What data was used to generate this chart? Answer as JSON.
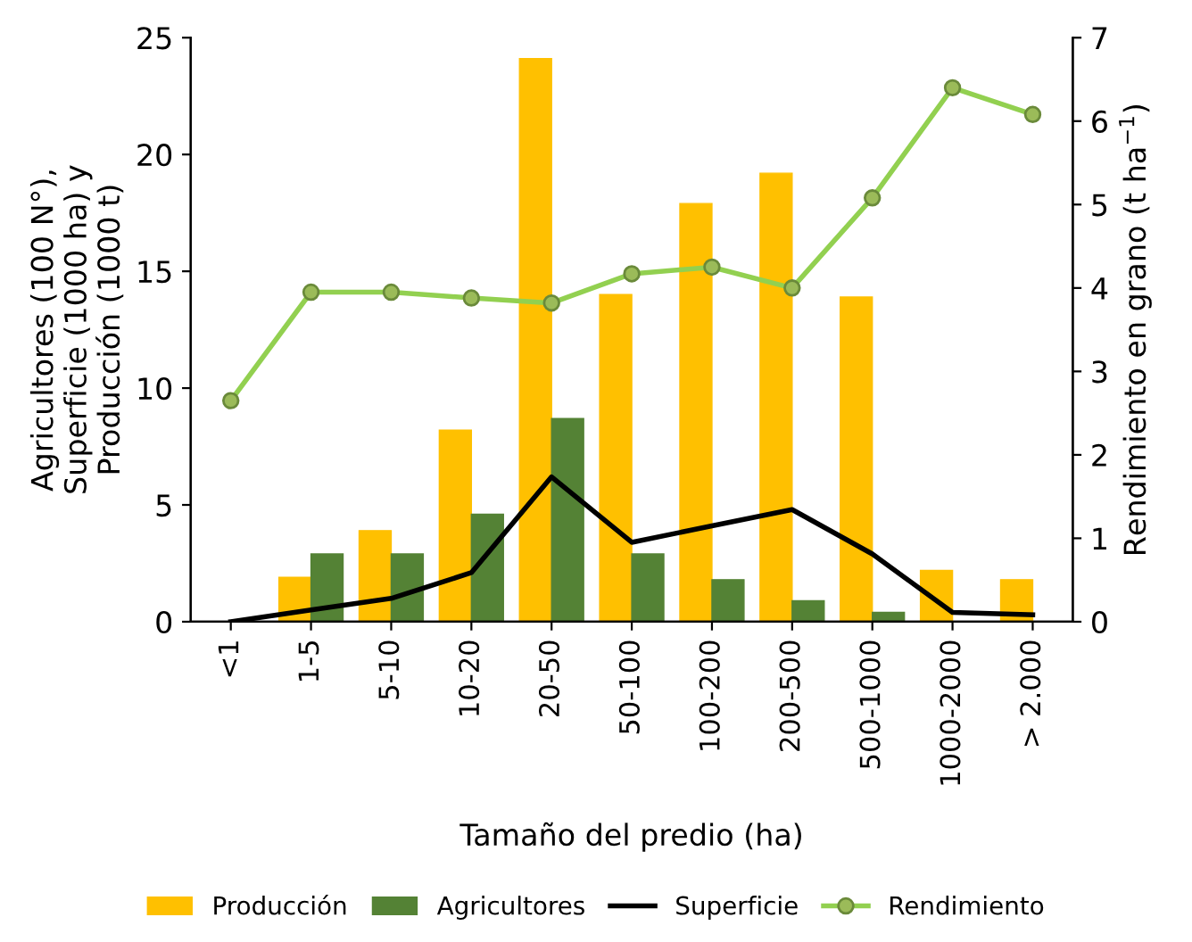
{
  "chart_data": {
    "type": "bar",
    "xlabel": "Tamaño del predio (ha)",
    "ylabel": "Agricultores (100 N°),\nSuperficie (1000 ha) y\nProducción (1000 t)",
    "y2label": "Rendimiento en grano (t ha$^{−1}$)",
    "categories": [
      "<1",
      "1-5",
      "5-10",
      "10-20",
      "20-50",
      "50-100",
      "100-200",
      "200-500",
      "500-1000",
      "1000-2000",
      "> 2.000"
    ],
    "series": [
      {
        "name": "Producción",
        "color": "#ffc000",
        "values": [
          0,
          1.9,
          3.9,
          8.2,
          24.1,
          14.0,
          17.9,
          19.2,
          13.9,
          2.2,
          1.8
        ]
      },
      {
        "name": "Agricultores",
        "color": "#548235",
        "values": [
          0,
          2.9,
          2.9,
          4.6,
          8.7,
          2.9,
          1.8,
          0.9,
          0.4,
          0,
          0
        ]
      },
      {
        "name": "Superficie",
        "type": "line",
        "color": "#000000",
        "values": [
          0.0,
          0.5,
          1.0,
          2.1,
          6.2,
          3.4,
          4.1,
          4.8,
          2.9,
          0.4,
          0.3
        ]
      },
      {
        "name": "Rendimiento",
        "type": "line",
        "axis": "y2",
        "marker": "circle",
        "color": "#92d050",
        "values": [
          2.65,
          3.95,
          3.95,
          3.88,
          3.82,
          4.17,
          4.25,
          4.0,
          5.08,
          6.4,
          6.08
        ]
      }
    ],
    "ylim": [
      0,
      25
    ],
    "yticks": [
      0,
      5,
      10,
      15,
      20,
      25
    ],
    "y2lim": [
      0,
      7
    ],
    "y2ticks": [
      0,
      1,
      2,
      3,
      4,
      5,
      6,
      7
    ],
    "grid": false,
    "legend": "bottom"
  }
}
